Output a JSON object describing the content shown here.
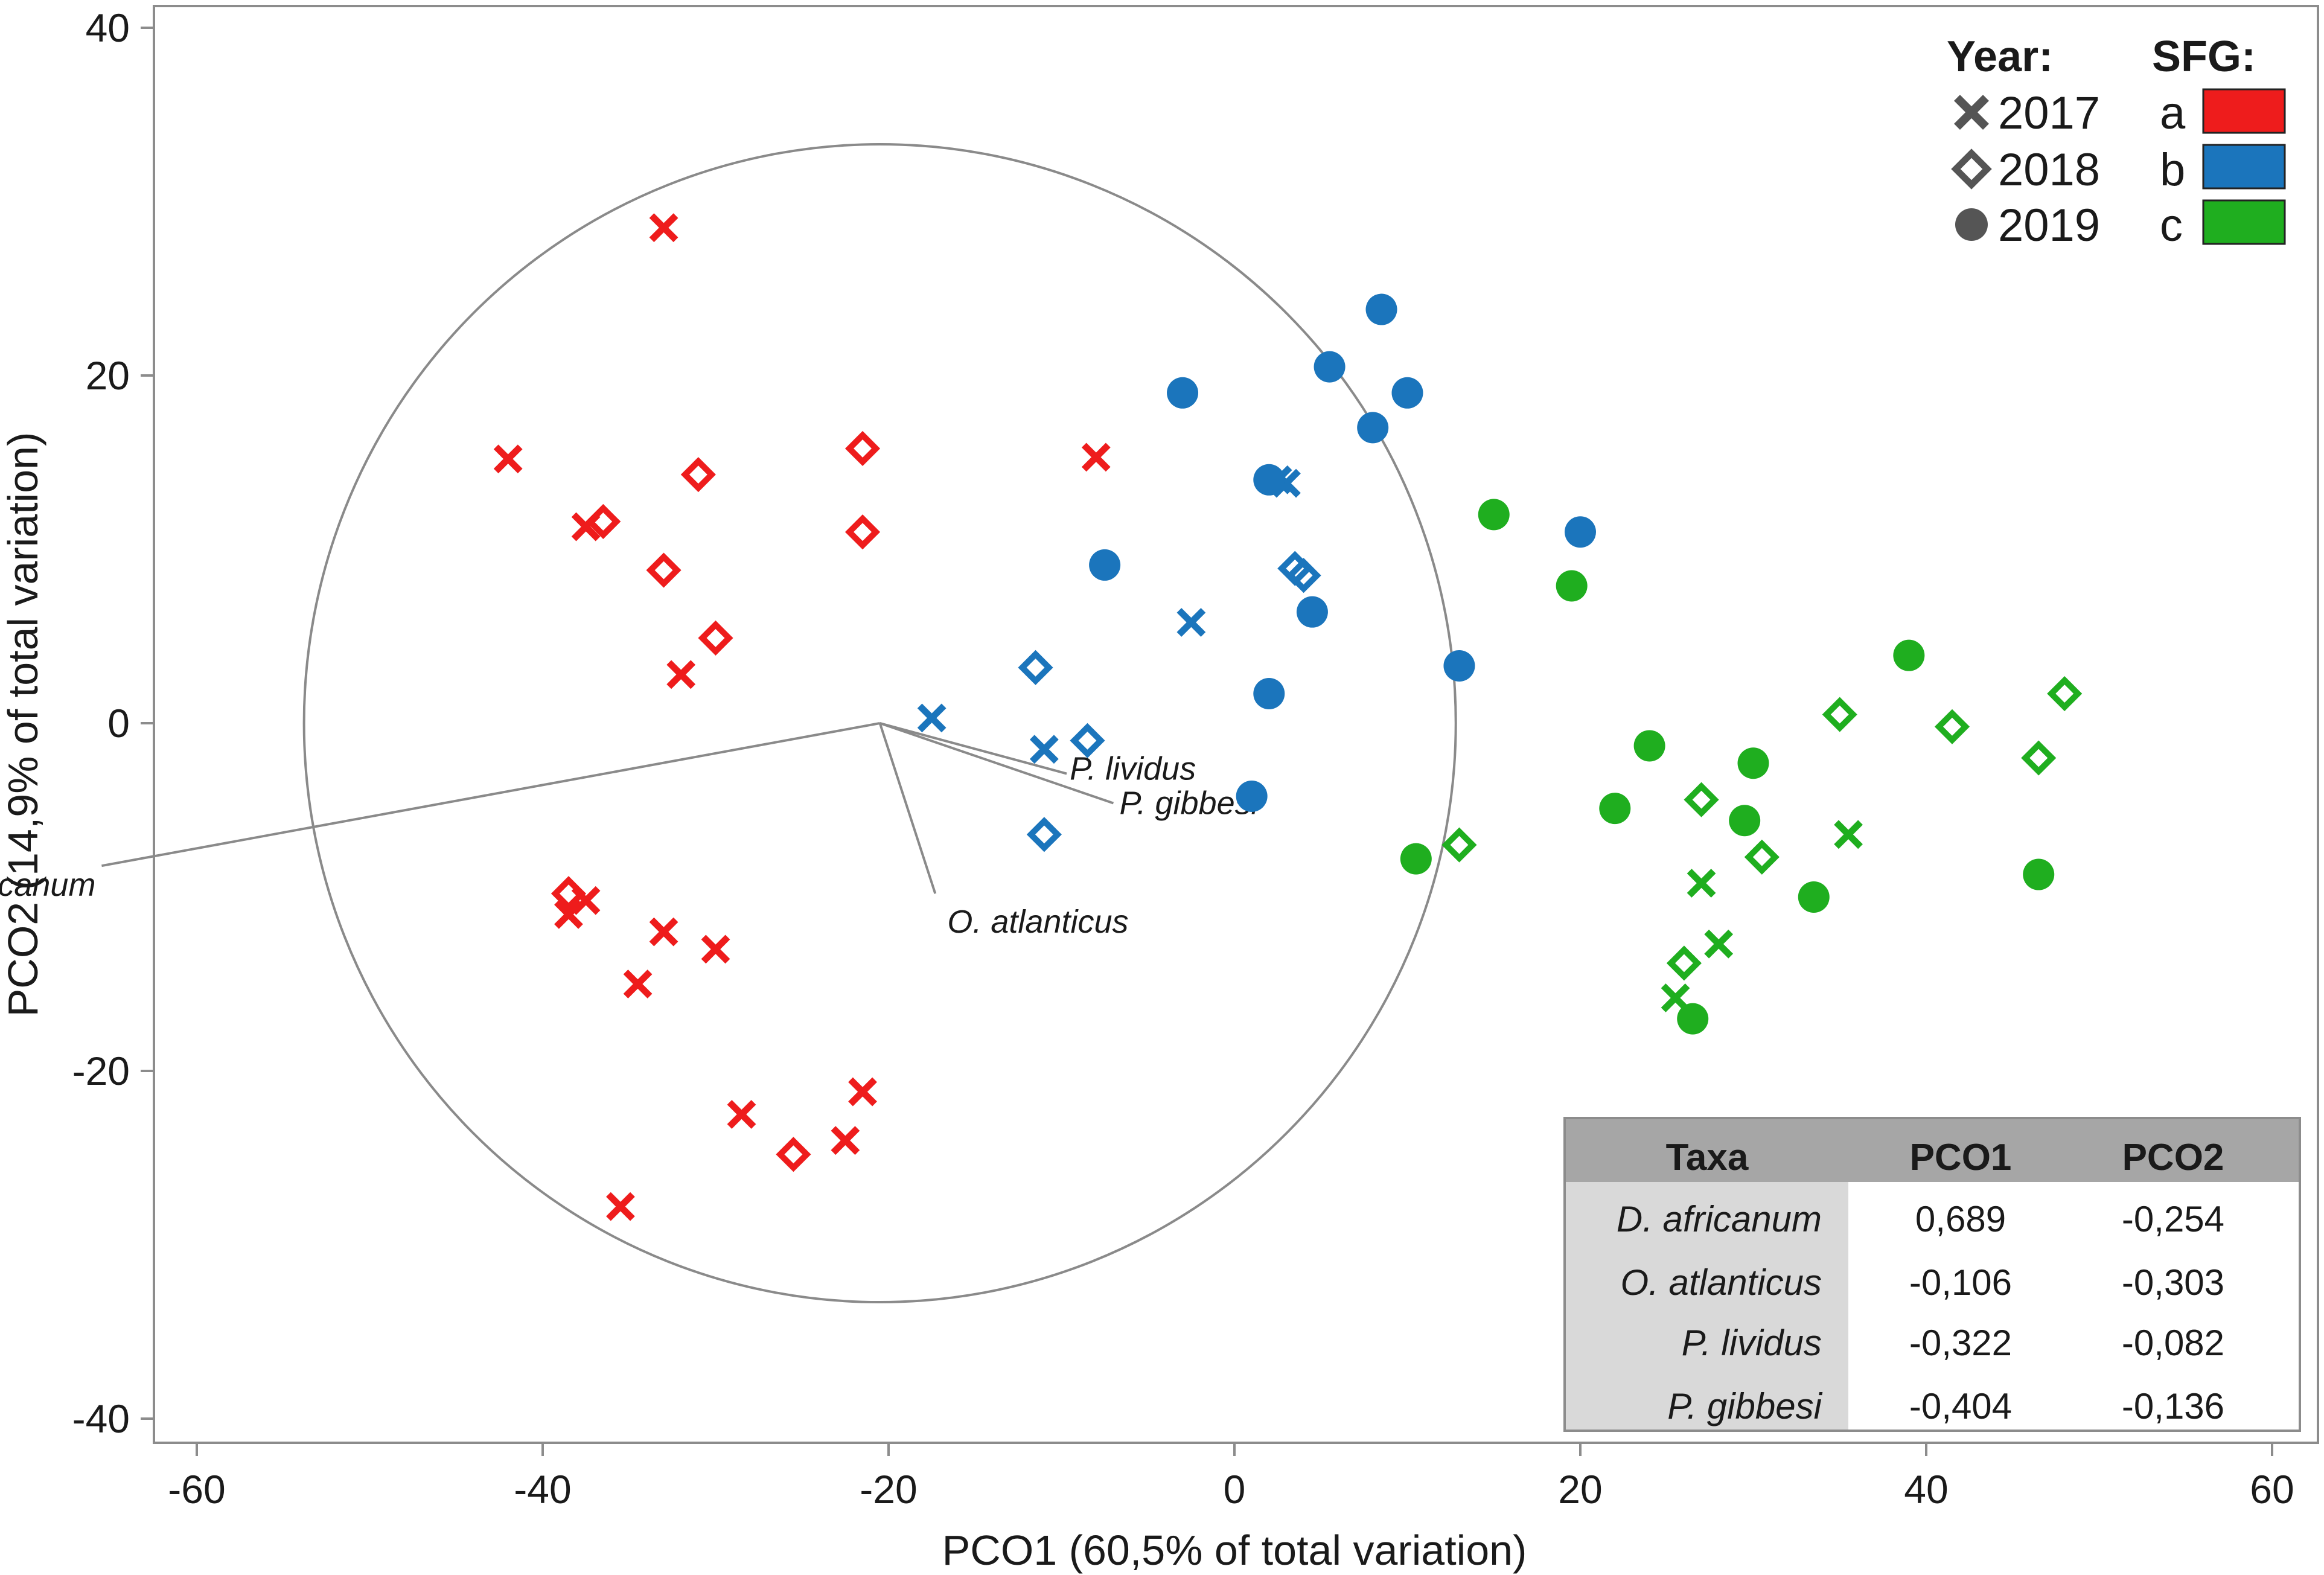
{
  "chart_data": {
    "type": "scatter",
    "xlabel": "PCO1 (60,5% of total variation)",
    "ylabel": "PCO2 (14,9% of total variation)",
    "xlim": [
      -60,
      60
    ],
    "ylim": [
      -40,
      40
    ],
    "x_ticks": [
      "-60",
      "-40",
      "-20",
      "0",
      "20",
      "40",
      "60"
    ],
    "y_ticks": [
      "40",
      "20",
      "0",
      "-20",
      "-40"
    ],
    "grid": false,
    "circle_radius": 33.3,
    "colors": {
      "a": "#ee1c1c",
      "b": "#1b75bc",
      "c": "#1fae1f"
    },
    "legend": {
      "placement": "top-right",
      "year_title": "Year:",
      "sfg_title": "SFG:",
      "years": [
        {
          "label": "2017",
          "marker": "x-marker-icon"
        },
        {
          "label": "2018",
          "marker": "diamond-marker-icon"
        },
        {
          "label": "2019",
          "marker": "circle-marker-icon"
        }
      ],
      "groups": [
        {
          "label": "a",
          "color": "#ee1c1c"
        },
        {
          "label": "b",
          "color": "#1b75bc"
        },
        {
          "label": "c",
          "color": "#1fae1f"
        }
      ]
    },
    "vectors": [
      {
        "label": "D. africanum",
        "x": -45,
        "y": -8.2
      },
      {
        "label": "O. atlanticus",
        "x": 3.2,
        "y": -9.8
      },
      {
        "label": "P. lividus",
        "x": 10.8,
        "y": -2.9
      },
      {
        "label": "P. gibbesi",
        "x": 13.5,
        "y": -4.6
      }
    ],
    "series": [
      {
        "name": "a-2017",
        "group": "a",
        "year": "2017",
        "marker": "x",
        "points": [
          [
            -33,
            28.5
          ],
          [
            -42,
            15.2
          ],
          [
            -37.5,
            11.3
          ],
          [
            -8,
            15.3
          ],
          [
            -32,
            2.8
          ],
          [
            -38.5,
            -11
          ],
          [
            -37.5,
            -10.2
          ],
          [
            -33,
            -12
          ],
          [
            -30,
            -13
          ],
          [
            -34.5,
            -15
          ],
          [
            -28.5,
            -22.5
          ],
          [
            -21.5,
            -21.2
          ],
          [
            -22.5,
            -24
          ],
          [
            -35.5,
            -27.8
          ]
        ]
      },
      {
        "name": "a-2018",
        "group": "a",
        "year": "2018",
        "marker": "diamond",
        "points": [
          [
            -36.5,
            11.6
          ],
          [
            -31,
            14.3
          ],
          [
            -21.5,
            15.8
          ],
          [
            -21.5,
            11
          ],
          [
            -33,
            8.8
          ],
          [
            -30,
            4.9
          ],
          [
            -38.5,
            -9.8
          ],
          [
            -25.5,
            -24.8
          ]
        ]
      },
      {
        "name": "b-2017",
        "group": "b",
        "year": "2017",
        "marker": "x",
        "points": [
          [
            -17.5,
            0.3
          ],
          [
            -11,
            -1.5
          ],
          [
            -2.5,
            5.8
          ],
          [
            2.5,
            14
          ],
          [
            3,
            13.8
          ]
        ]
      },
      {
        "name": "b-2018",
        "group": "b",
        "year": "2018",
        "marker": "diamond",
        "points": [
          [
            -11.5,
            3.2
          ],
          [
            -8.5,
            -1
          ],
          [
            -11,
            -6.4
          ],
          [
            3.5,
            8.9
          ],
          [
            4,
            8.5
          ]
        ]
      },
      {
        "name": "b-2019",
        "group": "b",
        "year": "2019",
        "marker": "circle",
        "points": [
          [
            -3,
            19
          ],
          [
            -7.5,
            9.1
          ],
          [
            2,
            14
          ],
          [
            5.5,
            20.5
          ],
          [
            8.5,
            23.8
          ],
          [
            8,
            17
          ],
          [
            10,
            19
          ],
          [
            4.5,
            6.4
          ],
          [
            2,
            1.7
          ],
          [
            13,
            3.3
          ],
          [
            20,
            11
          ],
          [
            1,
            -4.2
          ]
        ]
      },
      {
        "name": "c-2017",
        "group": "c",
        "year": "2017",
        "marker": "x",
        "points": [
          [
            27,
            -9.2
          ],
          [
            28,
            -12.7
          ],
          [
            25.5,
            -15.8
          ],
          [
            35.5,
            -6.4
          ]
        ]
      },
      {
        "name": "c-2018",
        "group": "c",
        "year": "2018",
        "marker": "diamond",
        "points": [
          [
            13,
            -7
          ],
          [
            27,
            -4.4
          ],
          [
            30.5,
            -7.7
          ],
          [
            26,
            -13.8
          ],
          [
            35,
            0.5
          ],
          [
            41.5,
            -0.2
          ],
          [
            46.5,
            -2
          ],
          [
            48,
            1.7
          ]
        ]
      },
      {
        "name": "c-2019",
        "group": "c",
        "year": "2019",
        "marker": "circle",
        "points": [
          [
            15,
            12
          ],
          [
            19.5,
            7.9
          ],
          [
            10.5,
            -7.8
          ],
          [
            22,
            -4.9
          ],
          [
            24,
            -1.3
          ],
          [
            30,
            -2.3
          ],
          [
            29.5,
            -5.6
          ],
          [
            33.5,
            -10
          ],
          [
            39,
            3.9
          ],
          [
            46.5,
            -8.7
          ],
          [
            26.5,
            -17
          ]
        ]
      }
    ]
  },
  "table": {
    "headers": [
      "Taxa",
      "PCO1",
      "PCO2"
    ],
    "rows": [
      [
        "D. africanum",
        "0,689",
        "-0,254"
      ],
      [
        "O. atlanticus",
        "-0,106",
        "-0,303"
      ],
      [
        "P. lividus",
        "-0,322",
        "-0,082"
      ],
      [
        "P. gibbesi",
        "-0,404",
        "-0,136"
      ]
    ]
  }
}
